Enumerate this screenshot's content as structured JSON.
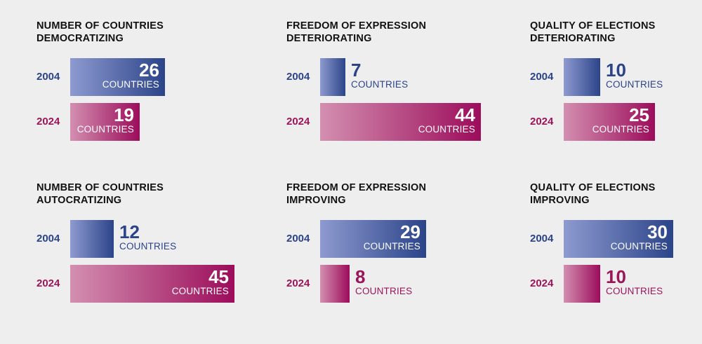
{
  "chart_data": [
    {
      "type": "bar",
      "title_lines": [
        "NUMBER OF COUNTRIES",
        "DEMOCRATIZING"
      ],
      "categories": [
        "2004",
        "2024"
      ],
      "values": [
        26,
        19
      ],
      "unit": "COUNTRIES"
    },
    {
      "type": "bar",
      "title_lines": [
        "FREEDOM OF EXPRESSION",
        "DETERIORATING"
      ],
      "categories": [
        "2004",
        "2024"
      ],
      "values": [
        7,
        44
      ],
      "unit": "COUNTRIES"
    },
    {
      "type": "bar",
      "title_lines": [
        "QUALITY OF ELECTIONS",
        "DETERIORATING"
      ],
      "categories": [
        "2004",
        "2024"
      ],
      "values": [
        10,
        25
      ],
      "unit": "COUNTRIES"
    },
    {
      "type": "bar",
      "title_lines": [
        "NUMBER OF COUNTRIES",
        "AUTOCRATIZING"
      ],
      "categories": [
        "2004",
        "2024"
      ],
      "values": [
        12,
        45
      ],
      "unit": "COUNTRIES"
    },
    {
      "type": "bar",
      "title_lines": [
        "FREEDOM OF EXPRESSION",
        "IMPROVING"
      ],
      "categories": [
        "2004",
        "2024"
      ],
      "values": [
        29,
        8
      ],
      "unit": "COUNTRIES"
    },
    {
      "type": "bar",
      "title_lines": [
        "QUALITY OF ELECTIONS",
        "IMPROVING"
      ],
      "categories": [
        "2004",
        "2024"
      ],
      "values": [
        30,
        10
      ],
      "unit": "COUNTRIES"
    }
  ],
  "colors": {
    "series_2004": "#2b4489",
    "series_2024": "#9c1559",
    "background": "#efeeee"
  }
}
